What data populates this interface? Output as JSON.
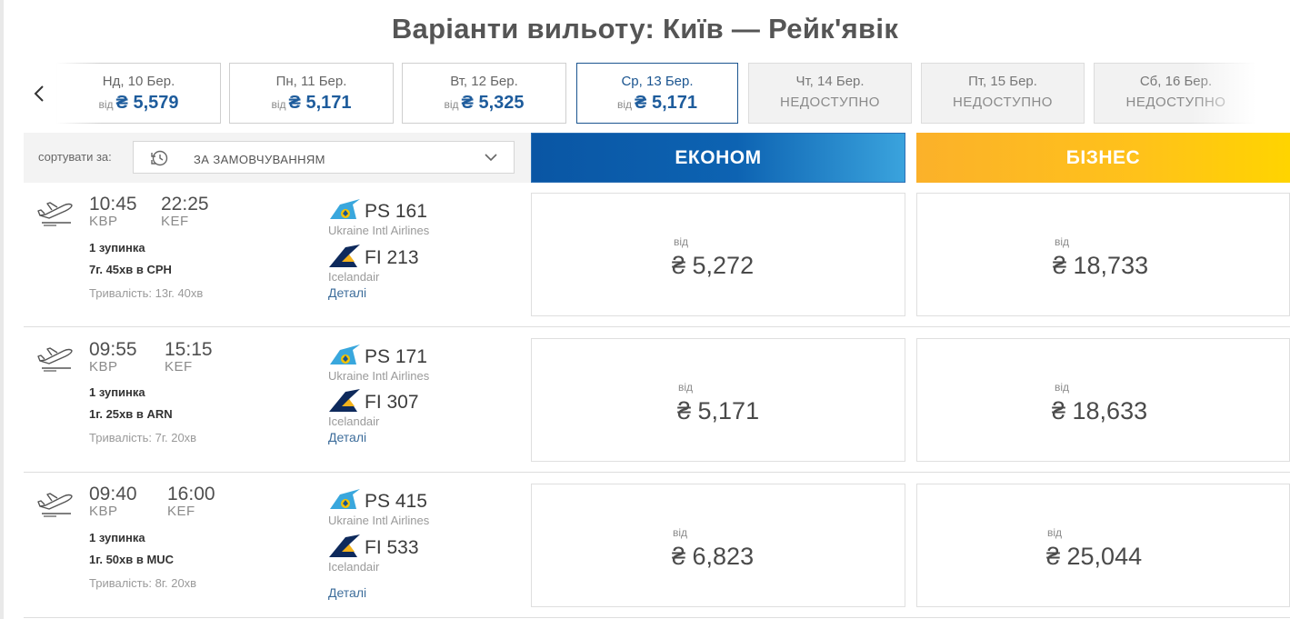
{
  "title": "Варіанти вильоту: Київ — Рейк'явік",
  "dates": [
    {
      "label": "Нд, 10 Бер.",
      "from": "від",
      "price": "₴ 5,579",
      "state": "available"
    },
    {
      "label": "Пн, 11 Бер.",
      "from": "від",
      "price": "₴ 5,171",
      "state": "available"
    },
    {
      "label": "Вт, 12 Бер.",
      "from": "від",
      "price": "₴ 5,325",
      "state": "available"
    },
    {
      "label": "Ср, 13 Бер.",
      "from": "від",
      "price": "₴ 5,171",
      "state": "selected"
    },
    {
      "label": "Чт, 14 Бер.",
      "unavailable": "НЕДОСТУПНО",
      "state": "unavailable"
    },
    {
      "label": "Пт, 15 Бер.",
      "unavailable": "НЕДОСТУПНО",
      "state": "unavailable"
    },
    {
      "label": "Сб, 16 Бер.",
      "unavailable": "НЕДОСТУПНО",
      "state": "unavailable"
    }
  ],
  "sort": {
    "label": "сортувати за:",
    "value": "ЗА ЗАМОВЧУВАННЯМ"
  },
  "classes": {
    "economy": "ЕКОНОМ",
    "business": "БІЗНЕС"
  },
  "flights": [
    {
      "dep_time": "10:45",
      "arr_time": "22:25",
      "dep_code": "KBP",
      "arr_code": "KEF",
      "stops": "1 зупинка",
      "layover": "7г. 45хв в CPH",
      "duration": "Тривалість: 13г. 40хв",
      "seg1": {
        "flight": "PS 161",
        "airline": "Ukraine Intl Airlines"
      },
      "seg2": {
        "flight": "FI 213",
        "airline": "Icelandair"
      },
      "details": "Деталі",
      "economy": {
        "from": "від",
        "price": "₴ 5,272"
      },
      "business": {
        "from": "від",
        "price": "₴ 18,733"
      }
    },
    {
      "dep_time": "09:55",
      "arr_time": "15:15",
      "dep_code": "KBP",
      "arr_code": "KEF",
      "stops": "1 зупинка",
      "layover": "1г. 25хв в ARN",
      "duration": "Тривалість: 7г. 20хв",
      "seg1": {
        "flight": "PS 171",
        "airline": "Ukraine Intl Airlines"
      },
      "seg2": {
        "flight": "FI 307",
        "airline": "Icelandair"
      },
      "details": "Деталі",
      "economy": {
        "from": "від",
        "price": "₴ 5,171"
      },
      "business": {
        "from": "від",
        "price": "₴ 18,633"
      }
    },
    {
      "dep_time": "09:40",
      "arr_time": "16:00",
      "dep_code": "KBP",
      "arr_code": "KEF",
      "stops": "1 зупинка",
      "layover": "1г. 50хв в MUC",
      "duration": "Тривалість: 8г. 20хв",
      "seg1": {
        "flight": "PS 415",
        "airline": "Ukraine Intl Airlines"
      },
      "seg2": {
        "flight": "FI 533",
        "airline": "Icelandair"
      },
      "details": "Деталі",
      "economy": {
        "from": "від",
        "price": "₴ 6,823"
      },
      "business": {
        "from": "від",
        "price": "₴ 25,044"
      }
    }
  ],
  "icons": {
    "prev": "chevron-left-icon",
    "sort": "sort-clock-icon",
    "dropdown": "chevron-down-icon",
    "departure": "plane-departure-icon",
    "uia_logo": "uia-logo-icon",
    "icelandair_logo": "icelandair-logo-icon"
  },
  "colors": {
    "economy": "#0d63b2",
    "business": "#ffc21a",
    "price_blue": "#1e5c9c",
    "link": "#3d6d9b"
  }
}
